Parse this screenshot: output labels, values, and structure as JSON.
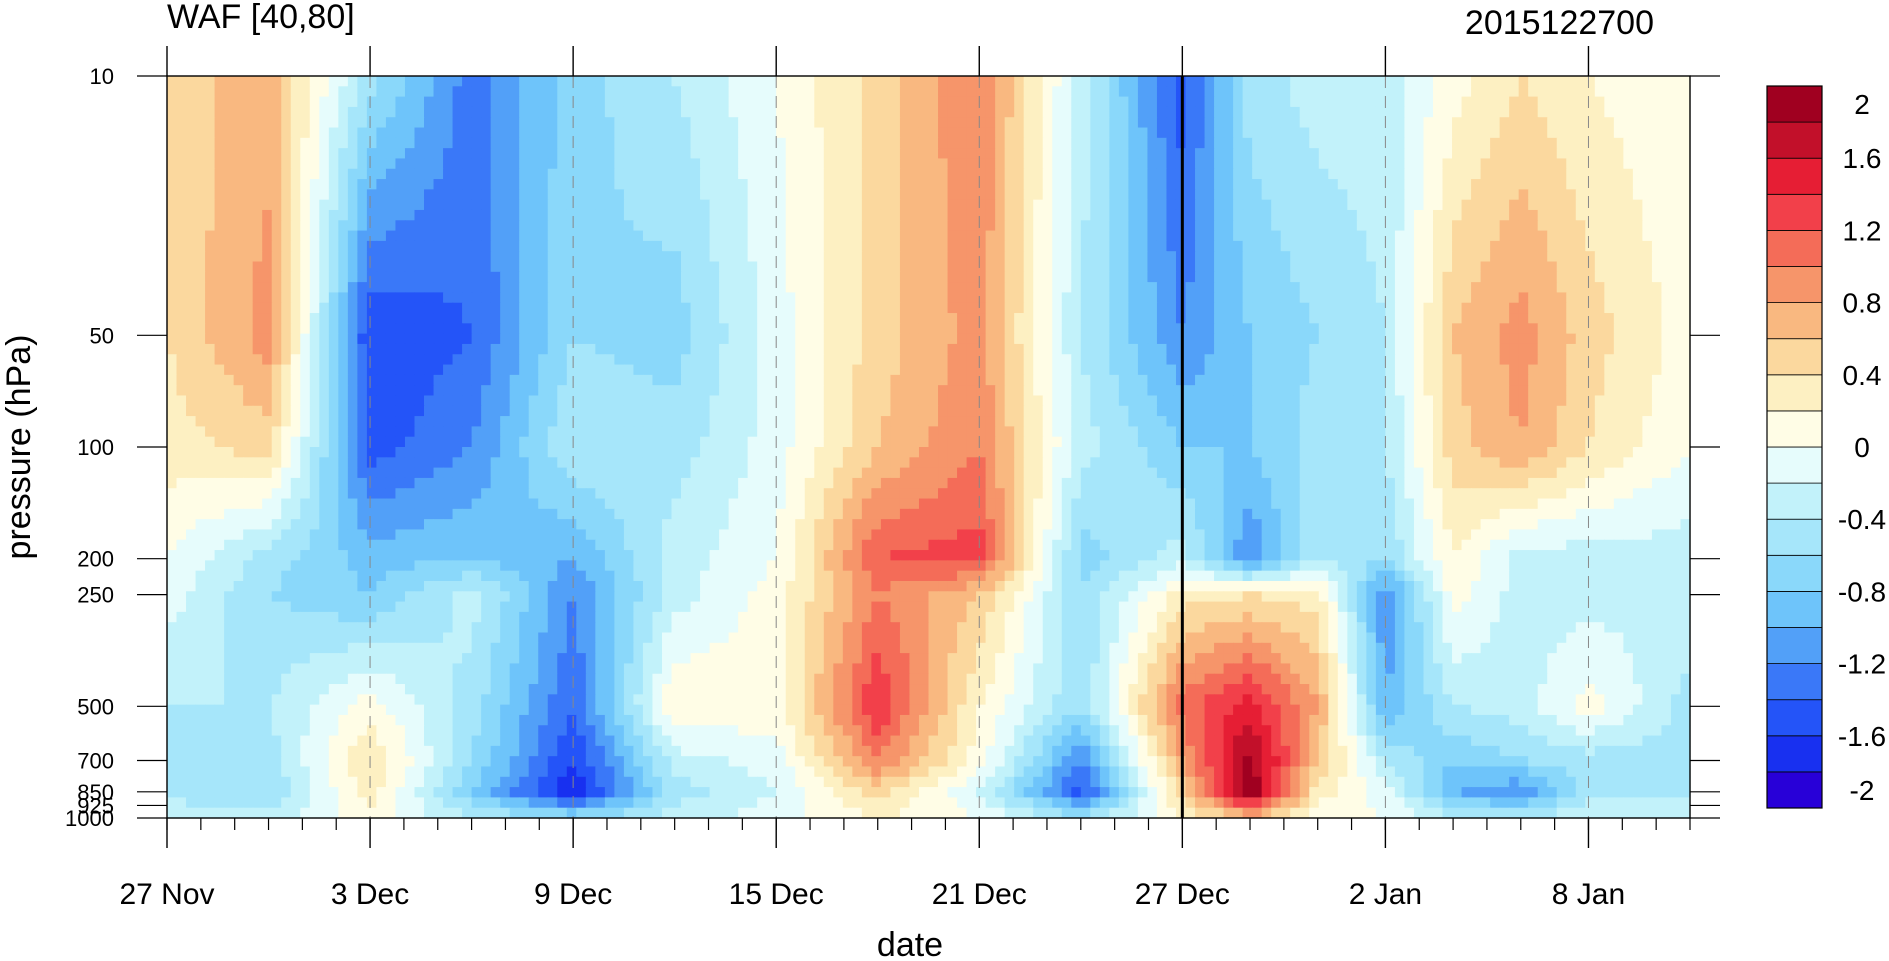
{
  "chart_data": {
    "type": "heatmap",
    "title": "WAF [40,80]",
    "subtitle": "2015122700",
    "xlabel": "date",
    "ylabel": "pressure (hPa)",
    "x_ticks": [
      "27 Nov",
      "3 Dec",
      "9 Dec",
      "15 Dec",
      "21 Dec",
      "27 Dec",
      "2 Jan",
      "8 Jan"
    ],
    "x_range": [
      "27 Nov",
      "11 Jan"
    ],
    "y_ticks": [
      "10",
      "50",
      "100",
      "200",
      "250",
      "500",
      "700",
      "850",
      "925",
      "1000"
    ],
    "y_range": [
      1000,
      10
    ],
    "y_scale": "log",
    "reference_date": "27 Dec",
    "colorbar": {
      "labels": [
        "2",
        "1.6",
        "1.2",
        "0.8",
        "0.4",
        "0",
        "-0.4",
        "-0.8",
        "-1.2",
        "-1.6",
        "-2"
      ],
      "levels": [
        -2,
        -1.8,
        -1.6,
        -1.4,
        -1.2,
        -1,
        -0.8,
        -0.6,
        -0.4,
        -0.2,
        0,
        0.2,
        0.4,
        0.6,
        0.8,
        1,
        1.2,
        1.4,
        1.6,
        1.8,
        2
      ],
      "colors": [
        "#2800d8",
        "#1830f0",
        "#2454f8",
        "#3a78f8",
        "#52a0f8",
        "#6ec4fa",
        "#8ad8fa",
        "#a6e6fa",
        "#c2f2fa",
        "#e6fcfc",
        "#fffde6",
        "#fdf0c2",
        "#fbd89e",
        "#f9b880",
        "#f6956a",
        "#f46c58",
        "#f2404a",
        "#e61e34",
        "#c2102a",
        "#a00020"
      ],
      "position": "right"
    },
    "field": {
      "dates": [
        "27 Nov",
        "30 Nov",
        "3 Dec",
        "6 Dec",
        "9 Dec",
        "12 Dec",
        "15 Dec",
        "18 Dec",
        "21 Dec",
        "24 Dec",
        "27 Dec",
        "29 Dec",
        "31 Dec",
        "2 Jan",
        "4 Jan",
        "6 Jan",
        "8 Jan",
        "11 Jan"
      ],
      "pressures": [
        10,
        50,
        100,
        200,
        250,
        500,
        700,
        850,
        1000
      ],
      "values": [
        [
          0.5,
          0.7,
          -0.5,
          -1.3,
          -0.7,
          -0.4,
          0.0,
          0.5,
          1.0,
          -0.3,
          -1.5,
          -0.5,
          -0.3,
          -0.3,
          0.1,
          0.4,
          0.2,
          0.0
        ],
        [
          0.4,
          0.9,
          -1.6,
          -1.4,
          -0.6,
          -0.7,
          -0.1,
          0.5,
          0.9,
          -0.4,
          -1.2,
          -0.8,
          -0.6,
          -0.4,
          0.6,
          0.9,
          0.5,
          0.1
        ],
        [
          0.3,
          0.5,
          -1.5,
          -1.2,
          -0.4,
          -0.5,
          -0.1,
          0.6,
          1.0,
          -0.3,
          -0.8,
          -0.8,
          -0.5,
          -0.4,
          0.5,
          0.8,
          0.4,
          0.0
        ],
        [
          0.0,
          -0.5,
          -0.9,
          -0.8,
          -1.0,
          -0.3,
          0.0,
          1.2,
          1.3,
          -0.7,
          -0.3,
          -1.2,
          -0.4,
          -0.6,
          0.2,
          -0.3,
          -0.3,
          -0.3
        ],
        [
          -0.1,
          -0.6,
          -0.8,
          -0.3,
          -1.2,
          -0.3,
          0.1,
          1.0,
          0.6,
          -0.6,
          0.3,
          0.4,
          0.3,
          -1.2,
          0.1,
          -0.3,
          -0.3,
          -0.2
        ],
        [
          -0.4,
          -0.4,
          0.1,
          -0.5,
          -1.4,
          0.2,
          0.1,
          1.4,
          0.2,
          -0.6,
          1.1,
          1.5,
          0.8,
          -1.0,
          -0.4,
          -0.3,
          0.1,
          -0.5
        ],
        [
          -0.4,
          -0.5,
          0.4,
          -0.6,
          -1.6,
          -0.3,
          -0.1,
          1.0,
          0.1,
          -1.2,
          0.8,
          1.9,
          0.6,
          -0.4,
          -0.8,
          -0.6,
          -0.5,
          -0.5
        ],
        [
          -0.5,
          -0.6,
          0.3,
          -0.8,
          -1.8,
          -0.5,
          -0.2,
          0.5,
          -0.2,
          -1.5,
          0.5,
          2.0,
          0.3,
          -0.1,
          -1.0,
          -1.2,
          -0.5,
          -0.5
        ],
        [
          -0.2,
          -0.3,
          0.1,
          -0.4,
          -0.6,
          -0.3,
          -0.1,
          0.2,
          0.0,
          -0.5,
          0.2,
          0.6,
          0.1,
          0.0,
          -0.3,
          -0.4,
          -0.2,
          -0.2
        ]
      ]
    }
  }
}
